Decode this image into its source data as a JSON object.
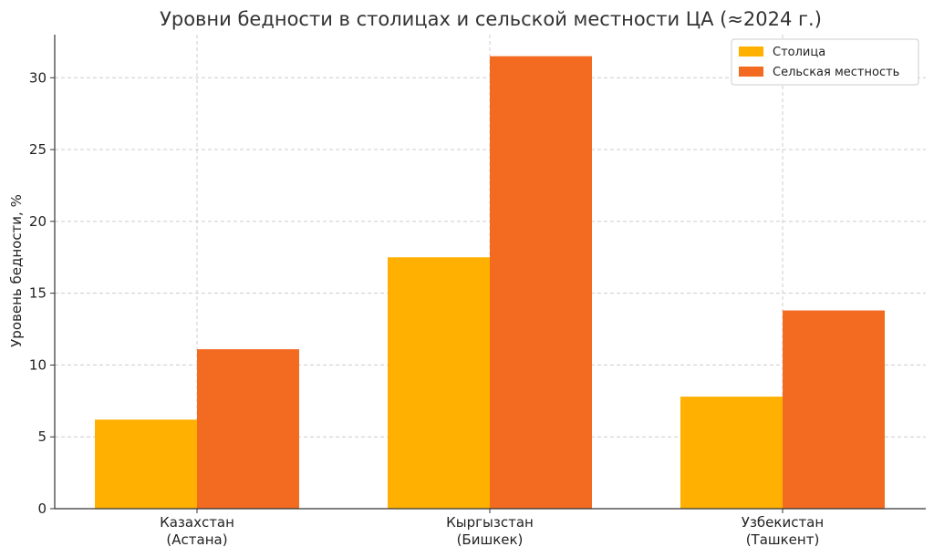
{
  "chart_data": {
    "type": "bar",
    "title": "Уровни бедности в столицах и сельской местности ЦА (≈2024 г.)",
    "ylabel": "Уровень бедности, %",
    "xlabel": "",
    "ylim": [
      0,
      33
    ],
    "yticks": [
      0,
      5,
      10,
      15,
      20,
      25,
      30
    ],
    "grid": true,
    "legend_position": "top-right",
    "categories": [
      [
        "Казахстан",
        "(Астана)"
      ],
      [
        "Кыргызстан",
        "(Бишкек)"
      ],
      [
        "Узбекистан",
        "(Ташкент)"
      ]
    ],
    "series": [
      {
        "name": "Столица",
        "color": "#FFB000",
        "values": [
          6.2,
          17.5,
          7.8
        ]
      },
      {
        "name": "Сельская местность",
        "color": "#F26B21",
        "values": [
          11.1,
          31.5,
          13.8
        ]
      }
    ]
  }
}
